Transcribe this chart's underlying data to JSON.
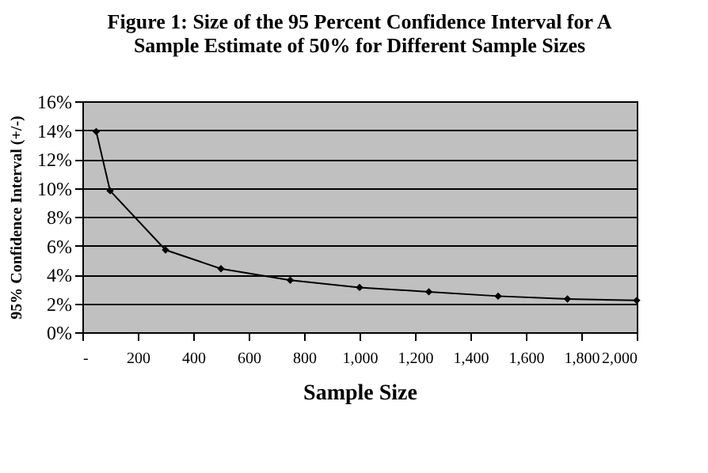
{
  "chart_data": {
    "type": "line",
    "title": "Figure 1:  Size of the 95 Percent Confidence Interval for A\nSample Estimate of 50% for Different Sample Sizes",
    "xlabel": "Sample Size",
    "ylabel": "95% Confidence Interval (+/-)",
    "x": [
      50,
      100,
      300,
      500,
      750,
      1000,
      1250,
      1500,
      1750,
      2000
    ],
    "series": [
      {
        "color": "#000000",
        "values": [
          13.9,
          9.8,
          5.7,
          4.4,
          3.6,
          3.1,
          2.8,
          2.5,
          2.3,
          2.2
        ]
      }
    ],
    "xlim": [
      0,
      2000
    ],
    "xticks": [
      {
        "value": 0,
        "label": "-"
      },
      200,
      400,
      600,
      800,
      {
        "value": 1000,
        "label": "1,000"
      },
      {
        "value": 1200,
        "label": "1,200"
      },
      {
        "value": 1400,
        "label": "1,400"
      },
      {
        "value": 1600,
        "label": "1,600"
      },
      {
        "value": 1800,
        "label": "1,800"
      },
      {
        "value": 2000,
        "label": "2,000"
      }
    ],
    "ylim": [
      0,
      16
    ],
    "yticks": [
      {
        "value": 0,
        "label": "0%"
      },
      {
        "value": 2,
        "label": "2%"
      },
      {
        "value": 4,
        "label": "4%"
      },
      {
        "value": 6,
        "label": "6%"
      },
      {
        "value": 8,
        "label": "8%"
      },
      {
        "value": 10,
        "label": "10%"
      },
      {
        "value": 12,
        "label": "12%"
      },
      {
        "value": 14,
        "label": "14%"
      },
      {
        "value": 16,
        "label": "16%"
      }
    ],
    "grid": "y",
    "marker": "diamond",
    "line_style": "solid"
  }
}
